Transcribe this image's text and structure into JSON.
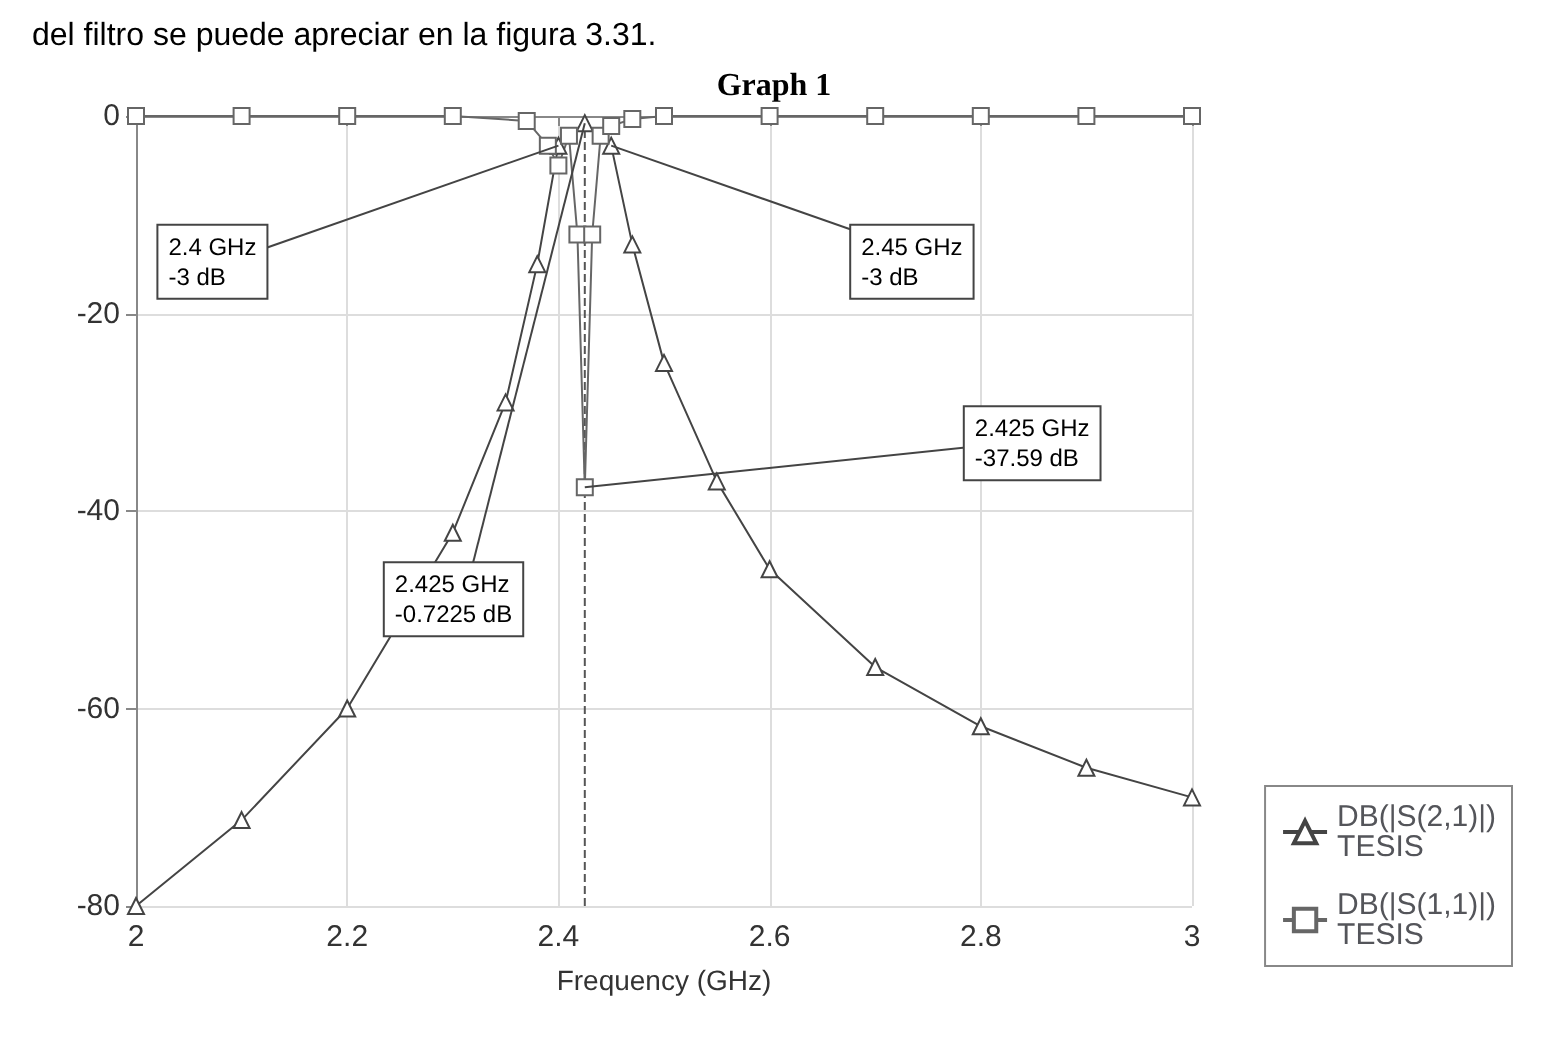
{
  "chart_data": {
    "type": "line",
    "title": "Graph 1",
    "xlabel": "Frequency (GHz)",
    "xlim": [
      2,
      3
    ],
    "xticks": [
      2,
      2.2,
      2.4,
      2.6,
      2.8,
      3
    ],
    "ylim": [
      -80,
      0
    ],
    "yticks": [
      -80,
      -60,
      -40,
      -20,
      0
    ],
    "grid": true,
    "legend": "bottom right",
    "line_style": "solid",
    "series": [
      {
        "name": "DB(|S(2,1)|)\nTESIS",
        "color": "#444444",
        "marker": "triangle",
        "x": [
          2,
          2.1,
          2.2,
          2.3,
          2.35,
          2.38,
          2.4,
          2.425,
          2.45,
          2.47,
          2.5,
          2.55,
          2.6,
          2.7,
          2.8,
          2.9,
          3
        ],
        "values": [
          -80,
          -71.3,
          -60,
          -42.2,
          -29,
          -15,
          -3,
          -0.7225,
          -3,
          -13,
          -25,
          -37,
          -45.9,
          -55.8,
          -61.8,
          -66,
          -69
        ]
      },
      {
        "name": "DB(|S(1,1)|)\nTESIS",
        "color": "#666666",
        "marker": "square",
        "x": [
          2,
          2.1,
          2.2,
          2.3,
          2.37,
          2.39,
          2.4,
          2.41,
          2.418,
          2.425,
          2.432,
          2.44,
          2.45,
          2.47,
          2.5,
          2.6,
          2.7,
          2.8,
          2.9,
          3
        ],
        "values": [
          0,
          0,
          0,
          0,
          -0.5,
          -3,
          -5,
          -2,
          -12,
          -37.59,
          -12,
          -2,
          -1,
          -0.3,
          0,
          0,
          0,
          0,
          0,
          0
        ]
      }
    ],
    "ref_lines": [
      {
        "axis": "x",
        "value": 2.425,
        "line_style": "dashed",
        "color": "#555555"
      }
    ],
    "annotations": [
      "del filtro se puede apreciar en la figura 3.31.",
      {
        "text": "2.4 GHz\n-3 dB",
        "x": 2.4,
        "y": -3
      },
      {
        "text": "2.45 GHz\n-3 dB",
        "x": 2.45,
        "y": -3
      },
      {
        "text": "2.425 GHz\n-37.59 dB",
        "x": 2.425,
        "y": -37.59
      },
      {
        "text": "2.425 GHz\n-0.7225 dB",
        "x": 2.425,
        "y": -0.7225
      }
    ]
  }
}
